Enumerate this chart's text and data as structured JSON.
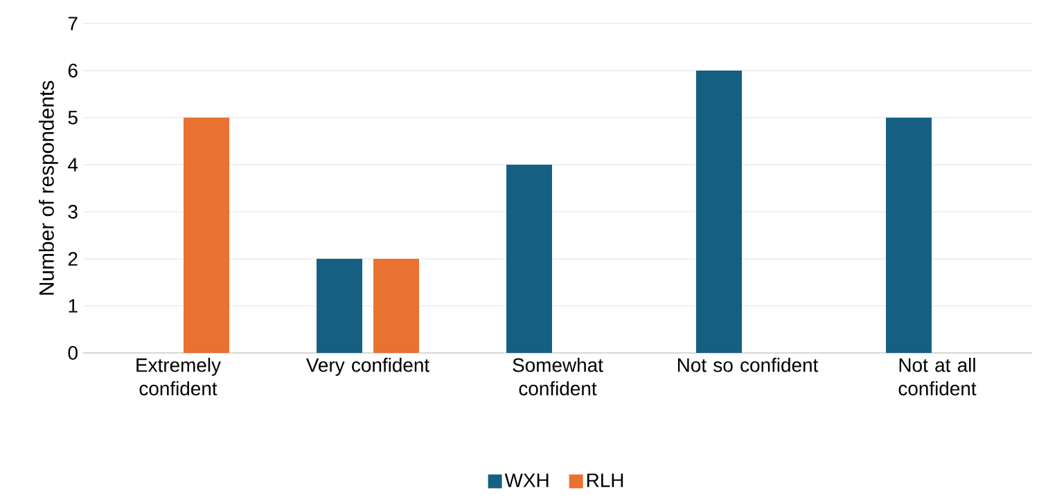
{
  "chart_data": {
    "type": "bar",
    "ylabel": "Number of respondents",
    "categories": [
      "Extremely confident",
      "Very confident",
      "Somewhat confident",
      "Not so confident",
      "Not at all confident"
    ],
    "series": [
      {
        "name": "WXH",
        "color": "#156082",
        "values": [
          0,
          2,
          4,
          6,
          5
        ]
      },
      {
        "name": "RLH",
        "color": "#e97132",
        "values": [
          5,
          2,
          0,
          0,
          0
        ]
      }
    ],
    "ylim": [
      0,
      7
    ],
    "yticks": [
      0,
      1,
      2,
      3,
      4,
      5,
      6,
      7
    ],
    "grid": "y",
    "legend": "bottom"
  }
}
